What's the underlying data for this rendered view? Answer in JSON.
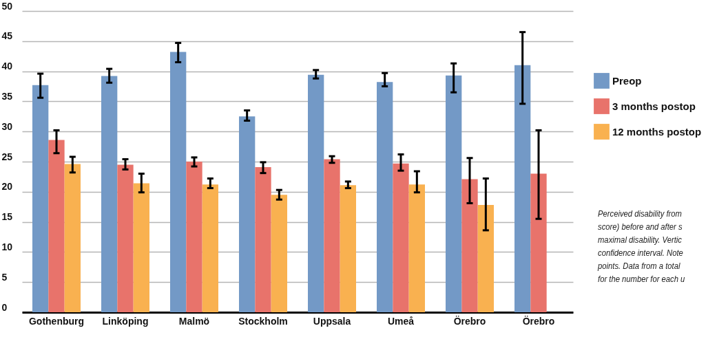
{
  "chart_data": {
    "type": "bar",
    "categories": [
      "Gothenburg",
      "Linköping",
      "Malmö",
      "Stockholm",
      "Uppsala",
      "Umeå",
      "Örebro",
      "Örebro"
    ],
    "series": [
      {
        "name": "Preop",
        "color": "#7399c6",
        "values": [
          37.7,
          39.2,
          43.2,
          32.5,
          39.4,
          38.2,
          39.3,
          41.0
        ],
        "errors": [
          [
            35.6,
            39.6
          ],
          [
            38.1,
            40.4
          ],
          [
            41.5,
            44.7
          ],
          [
            31.8,
            33.5
          ],
          [
            38.8,
            40.2
          ],
          [
            37.5,
            39.7
          ],
          [
            36.5,
            41.3
          ],
          [
            34.6,
            46.5
          ]
        ]
      },
      {
        "name": "3 months postop",
        "color": "#e8736b",
        "values": [
          28.6,
          24.5,
          25.0,
          24.1,
          25.4,
          24.7,
          22.1,
          23.0
        ],
        "errors": [
          [
            26.4,
            30.2
          ],
          [
            23.7,
            25.4
          ],
          [
            24.2,
            25.7
          ],
          [
            23.1,
            24.9
          ],
          [
            24.8,
            25.9
          ],
          [
            23.5,
            26.2
          ],
          [
            18.1,
            25.6
          ],
          [
            15.5,
            30.2
          ]
        ]
      },
      {
        "name": "12 months postop",
        "color": "#f9b150",
        "values": [
          24.6,
          21.4,
          21.2,
          19.5,
          21.1,
          21.2,
          17.8,
          null
        ],
        "errors": [
          [
            23.2,
            25.8
          ],
          [
            19.9,
            23.0
          ],
          [
            20.6,
            22.2
          ],
          [
            18.7,
            20.3
          ],
          [
            20.6,
            21.7
          ],
          [
            19.9,
            23.4
          ],
          [
            13.6,
            22.2
          ],
          null
        ]
      }
    ],
    "ylim": [
      0,
      50
    ],
    "yticks": [
      0,
      5,
      10,
      15,
      20,
      25,
      30,
      35,
      40,
      45,
      50
    ],
    "grid": "y",
    "legend": "right",
    "annotations": [
      "Perceived disability from",
      "score) before and after s",
      "maximal disability. Vertic",
      "confidence interval. Note",
      "points. Data from a total",
      "for the number for each u"
    ]
  }
}
